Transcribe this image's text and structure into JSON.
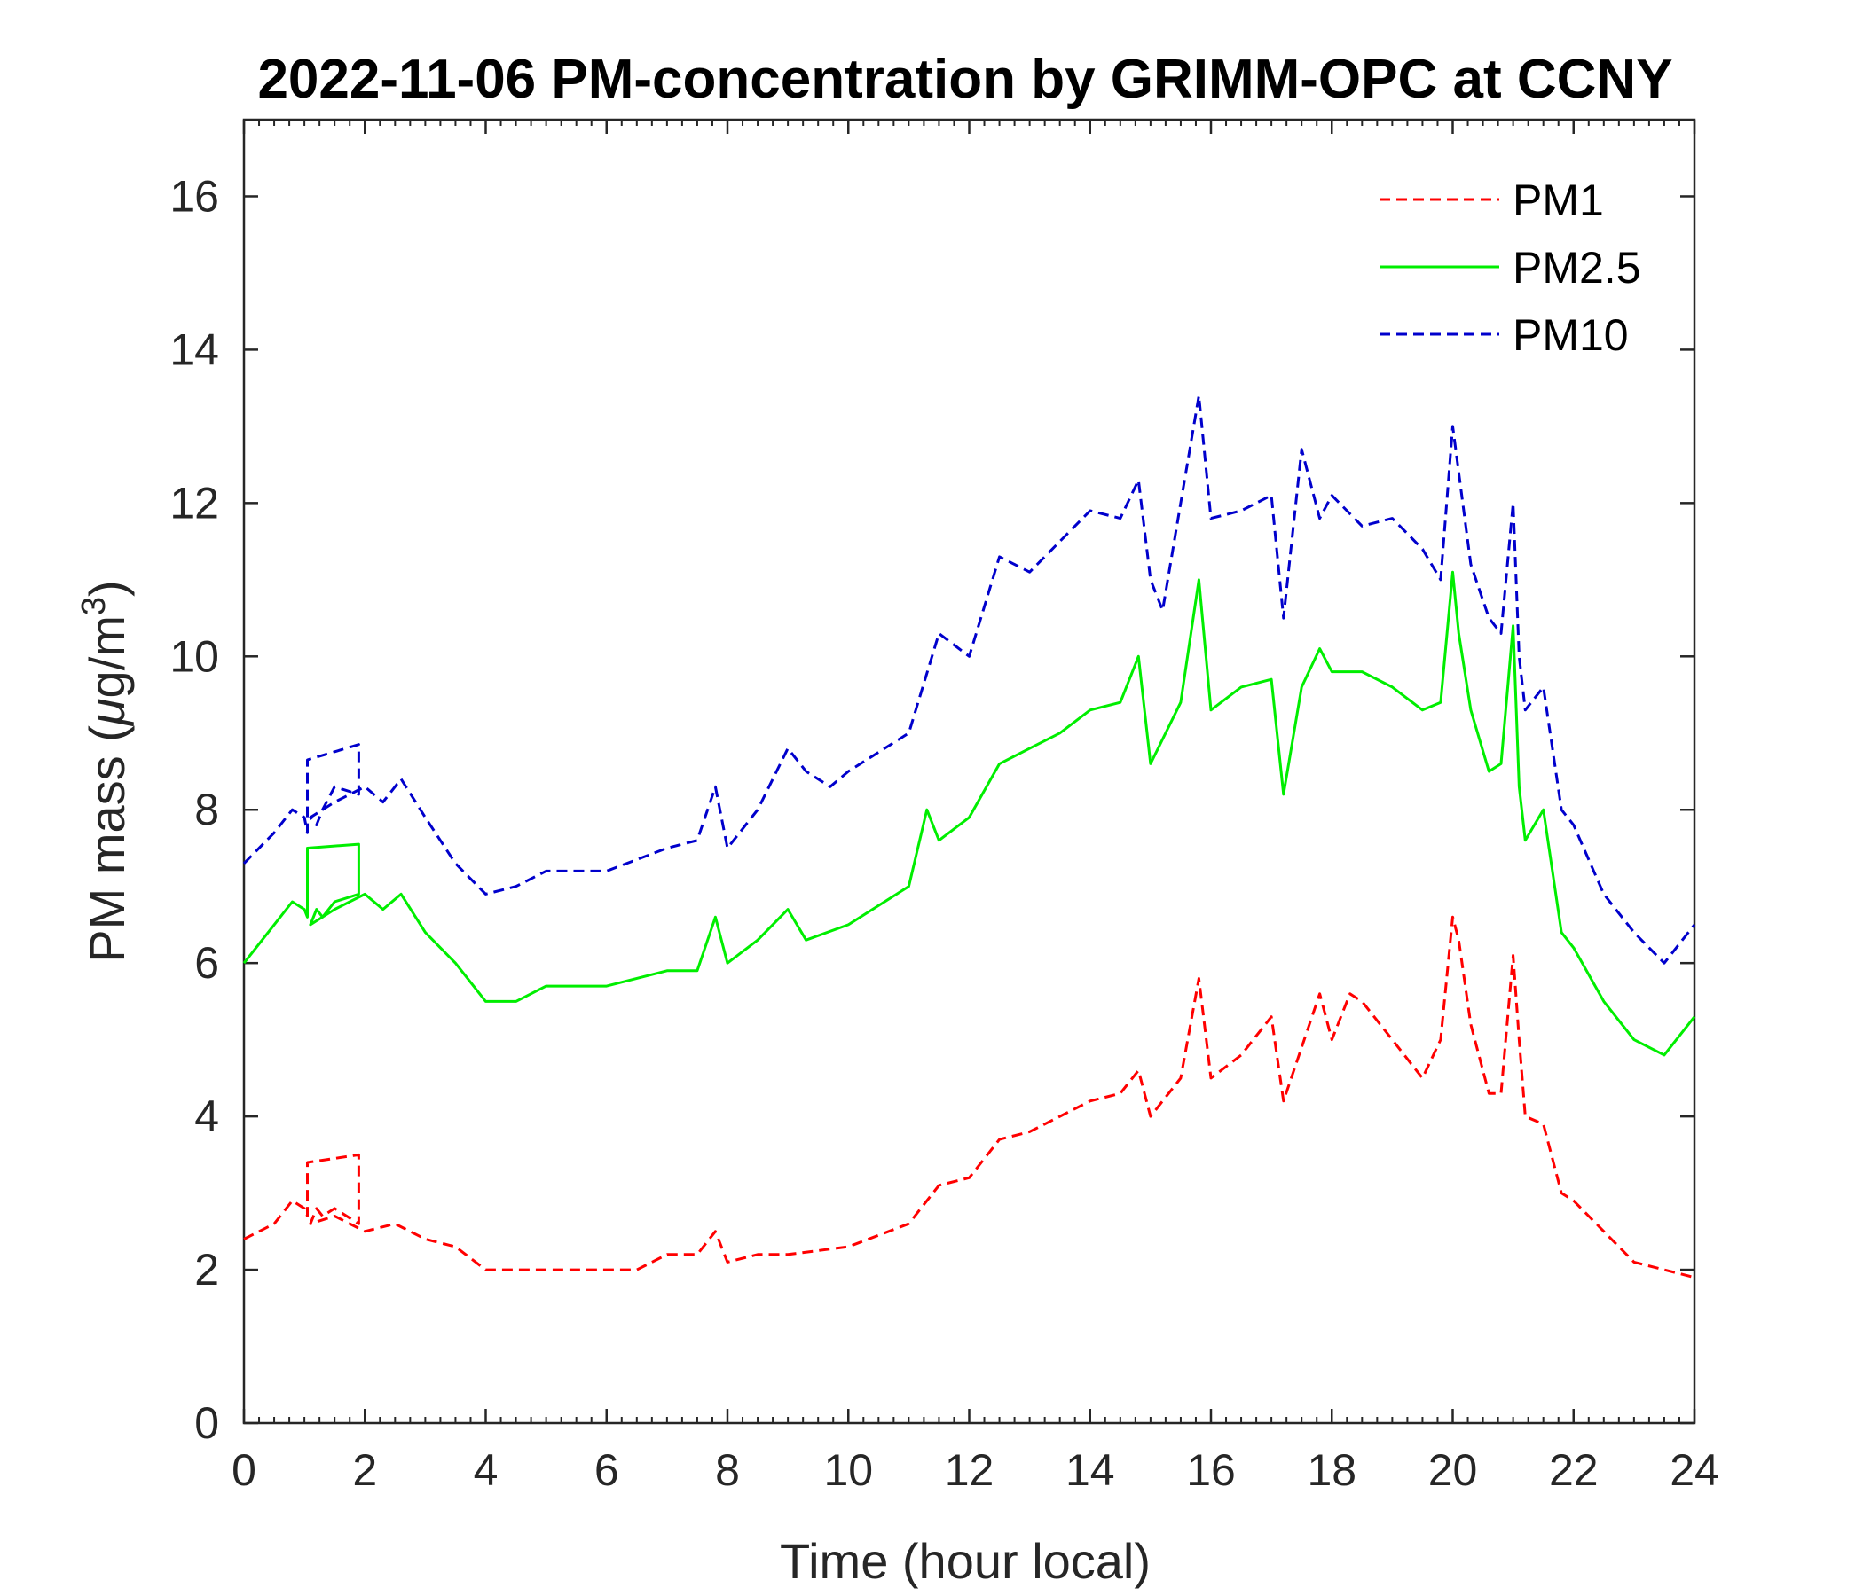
{
  "chart_data": {
    "type": "line",
    "title": "2022-11-06 PM-concentration by GRIMM-OPC at CCNY",
    "xlabel": "Time (hour local)",
    "ylabel": "PM mass (",
    "ylabel_mu": "μ",
    "ylabel_unit": "g/m",
    "ylabel_sup": "3",
    "ylabel_close": ")",
    "xlim": [
      0,
      24
    ],
    "ylim": [
      0,
      17
    ],
    "xticks": [
      "0",
      "2",
      "4",
      "6",
      "8",
      "10",
      "12",
      "14",
      "16",
      "18",
      "20",
      "22",
      "24"
    ],
    "yticks": [
      "0",
      "2",
      "4",
      "6",
      "8",
      "10",
      "12",
      "14",
      "16"
    ],
    "grid": false,
    "legend_position": "top-right",
    "series": [
      {
        "name": "PM1",
        "color": "#ff0000",
        "dash": "dashed",
        "x": [
          0,
          0.5,
          0.8,
          1,
          1.05,
          1.05,
          1.9,
          1.9,
          1.5,
          1.3,
          1.2,
          1.1,
          1.5,
          2,
          2.5,
          3,
          3.5,
          4,
          5,
          6,
          6.5,
          7,
          7.5,
          7.8,
          8,
          8.5,
          9,
          10,
          11,
          11.5,
          12,
          12.5,
          13,
          13.5,
          14,
          14.5,
          14.8,
          15,
          15.5,
          15.8,
          16,
          16.5,
          17,
          17.2,
          17.5,
          17.8,
          18,
          18.3,
          18.5,
          19,
          19.5,
          19.8,
          20,
          20.1,
          20.3,
          20.6,
          20.8,
          21,
          21.1,
          21.2,
          21.5,
          21.8,
          22,
          22.5,
          23,
          23.5,
          24
        ],
        "y": [
          2.4,
          2.6,
          2.9,
          2.8,
          2.7,
          3.4,
          3.5,
          2.6,
          2.8,
          2.7,
          2.8,
          2.6,
          2.7,
          2.5,
          2.6,
          2.4,
          2.3,
          2.0,
          2.0,
          2.0,
          2.0,
          2.2,
          2.2,
          2.5,
          2.1,
          2.2,
          2.2,
          2.3,
          2.6,
          3.1,
          3.2,
          3.7,
          3.8,
          4.0,
          4.2,
          4.3,
          4.6,
          4.0,
          4.5,
          5.8,
          4.5,
          4.8,
          5.3,
          4.2,
          4.9,
          5.6,
          5.0,
          5.6,
          5.5,
          5.0,
          4.5,
          5.0,
          6.6,
          6.3,
          5.2,
          4.3,
          4.3,
          6.1,
          5.0,
          4.0,
          3.9,
          3.0,
          2.9,
          2.5,
          2.1,
          2.0,
          1.9
        ]
      },
      {
        "name": "PM2.5",
        "color": "#00ee00",
        "dash": "solid",
        "x": [
          0,
          0.5,
          0.8,
          1,
          1.05,
          1.05,
          1.9,
          1.9,
          1.5,
          1.3,
          1.2,
          1.1,
          1.5,
          2,
          2.3,
          2.6,
          3,
          3.5,
          4,
          4.5,
          5,
          6,
          7,
          7.5,
          7.8,
          8,
          8.5,
          9,
          9.3,
          10,
          11,
          11.3,
          11.5,
          12,
          12.5,
          13,
          13.5,
          14,
          14.5,
          14.8,
          15,
          15.5,
          15.8,
          16,
          16.5,
          17,
          17.2,
          17.5,
          17.8,
          18,
          18.5,
          19,
          19.5,
          19.8,
          20,
          20.1,
          20.3,
          20.6,
          20.8,
          21,
          21.1,
          21.2,
          21.5,
          21.8,
          22,
          22.5,
          23,
          23.5,
          24
        ],
        "y": [
          6.0,
          6.5,
          6.8,
          6.7,
          6.6,
          7.5,
          7.55,
          6.9,
          6.8,
          6.6,
          6.7,
          6.5,
          6.7,
          6.9,
          6.7,
          6.9,
          6.4,
          6.0,
          5.5,
          5.5,
          5.7,
          5.7,
          5.9,
          5.9,
          6.6,
          6.0,
          6.3,
          6.7,
          6.3,
          6.5,
          7.0,
          8.0,
          7.6,
          7.9,
          8.6,
          8.8,
          9.0,
          9.3,
          9.4,
          10.0,
          8.6,
          9.4,
          11.0,
          9.3,
          9.6,
          9.7,
          8.2,
          9.6,
          10.1,
          9.8,
          9.8,
          9.6,
          9.3,
          9.4,
          11.1,
          10.3,
          9.3,
          8.5,
          8.6,
          10.4,
          8.3,
          7.6,
          8.0,
          6.4,
          6.2,
          5.5,
          5.0,
          4.8,
          5.3
        ]
      },
      {
        "name": "PM10",
        "color": "#0000cc",
        "dash": "dashed",
        "x": [
          0,
          0.5,
          0.8,
          1,
          1.05,
          1.05,
          1.9,
          1.9,
          1.5,
          1.3,
          1.2,
          1.1,
          1.5,
          2,
          2.3,
          2.6,
          3,
          3.5,
          4,
          4.5,
          5,
          6,
          7,
          7.5,
          7.8,
          8,
          8.5,
          9,
          9.3,
          9.7,
          10,
          11,
          11.5,
          12,
          12.5,
          13,
          13.5,
          14,
          14.5,
          14.8,
          15,
          15.2,
          15.5,
          15.8,
          16,
          16.5,
          17,
          17.2,
          17.5,
          17.8,
          18,
          18.5,
          19,
          19.5,
          19.8,
          20,
          20.1,
          20.3,
          20.6,
          20.8,
          21,
          21.1,
          21.2,
          21.5,
          21.8,
          22,
          22.5,
          23,
          23.5,
          24
        ],
        "y": [
          7.3,
          7.7,
          8.0,
          7.9,
          7.7,
          8.65,
          8.85,
          8.2,
          8.3,
          8.0,
          7.8,
          7.9,
          8.1,
          8.3,
          8.1,
          8.4,
          7.9,
          7.3,
          6.9,
          7.0,
          7.2,
          7.2,
          7.5,
          7.6,
          8.3,
          7.5,
          8.0,
          8.8,
          8.5,
          8.3,
          8.5,
          9.0,
          10.3,
          10.0,
          11.3,
          11.1,
          11.5,
          11.9,
          11.8,
          12.3,
          11.0,
          10.6,
          12.0,
          13.4,
          11.8,
          11.9,
          12.1,
          10.5,
          12.7,
          11.8,
          12.1,
          11.7,
          11.8,
          11.4,
          11.0,
          13.0,
          12.4,
          11.2,
          10.5,
          10.3,
          12.0,
          10.0,
          9.3,
          9.6,
          8.0,
          7.8,
          6.9,
          6.4,
          6.0,
          6.5
        ]
      }
    ]
  }
}
